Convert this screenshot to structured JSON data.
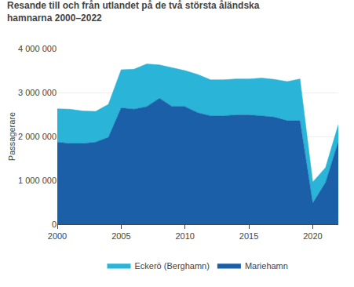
{
  "chart_data": {
    "type": "area",
    "title": "Resande till och från utlandet på de två största åländska\nhamnarna 2000–2022",
    "ylabel": "Passagerare",
    "x": [
      2000,
      2001,
      2002,
      2003,
      2004,
      2005,
      2006,
      2007,
      2008,
      2009,
      2010,
      2011,
      2012,
      2013,
      2014,
      2015,
      2016,
      2017,
      2018,
      2019,
      2020,
      2021,
      2022
    ],
    "series": [
      {
        "name": "Mariehamn",
        "color": "#1a5fa8",
        "values": [
          1870000,
          1840000,
          1840000,
          1870000,
          1980000,
          2650000,
          2620000,
          2680000,
          2870000,
          2680000,
          2680000,
          2540000,
          2470000,
          2470000,
          2490000,
          2490000,
          2470000,
          2440000,
          2360000,
          2360000,
          480000,
          950000,
          1880000
        ]
      },
      {
        "name": "Eckerö (Berghamn)",
        "color": "#2ab5d8",
        "values": [
          760000,
          780000,
          740000,
          700000,
          750000,
          870000,
          910000,
          970000,
          760000,
          880000,
          820000,
          870000,
          820000,
          820000,
          820000,
          820000,
          860000,
          860000,
          890000,
          950000,
          480000,
          340000,
          390000
        ]
      }
    ],
    "stacked": true,
    "xlim": [
      2000,
      2022
    ],
    "xticks": [
      2000,
      2005,
      2010,
      2015,
      2020
    ],
    "ylim": [
      0,
      4000000
    ],
    "yticks": [
      0,
      {
        "value": 1000000,
        "label": "1 000 000"
      },
      {
        "value": 2000000,
        "label": "2 000 000"
      },
      {
        "value": 3000000,
        "label": "3 000 000"
      },
      {
        "value": 4000000,
        "label": "4 000 000"
      }
    ],
    "grid": true,
    "legend": "bottom"
  }
}
